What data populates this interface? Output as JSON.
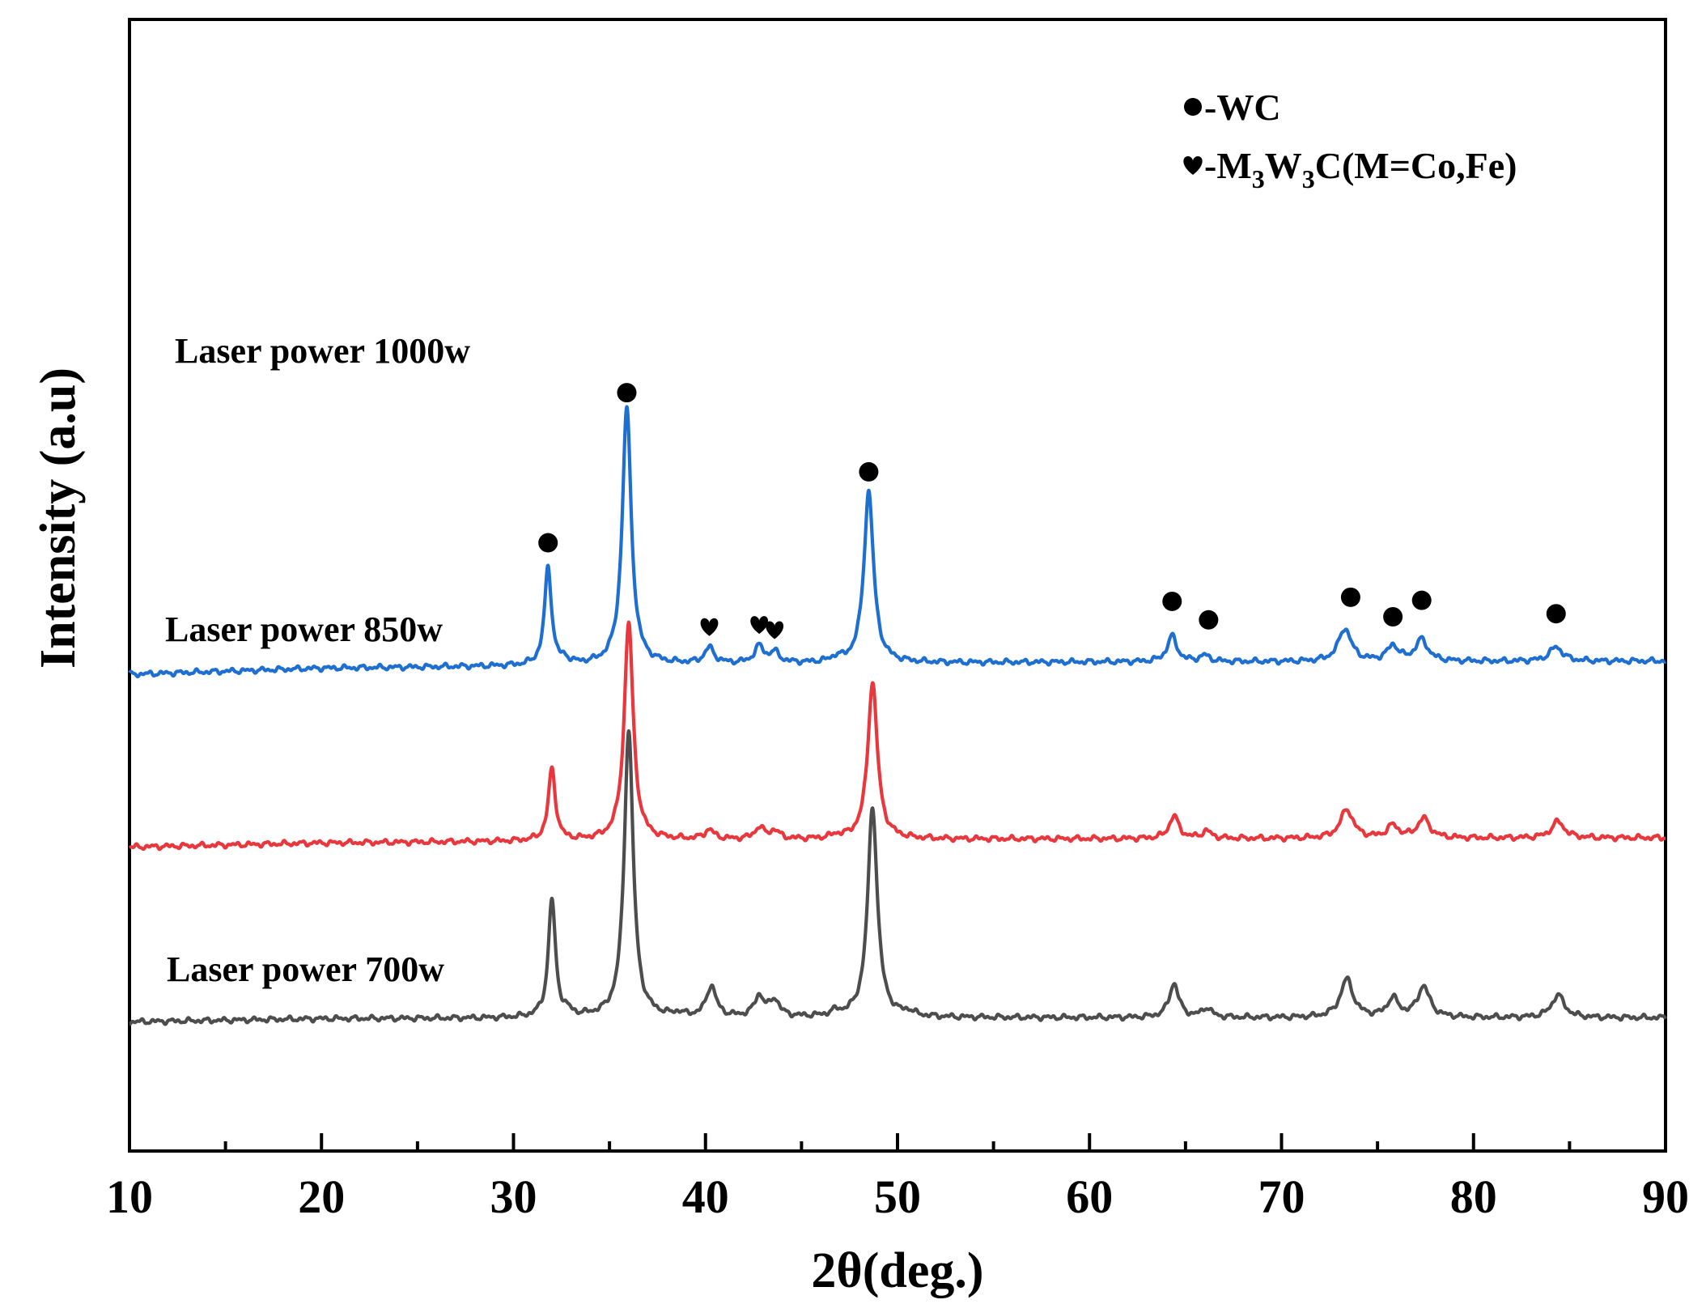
{
  "chart_data": {
    "type": "line",
    "title": "",
    "xlabel": "2θ(deg.)",
    "ylabel": "Intensity (a.u)",
    "xlim": [
      10,
      90
    ],
    "xticks": [
      "10",
      "20",
      "30",
      "40",
      "50",
      "60",
      "70",
      "80",
      "90"
    ],
    "yticks": [],
    "grid": false,
    "legend": {
      "position": "top-right",
      "entries": [
        {
          "symbol": "circle",
          "text": "-WC"
        },
        {
          "symbol": "heart",
          "text_pre": "-M",
          "sub1": "3",
          "text_mid": "W",
          "sub2": "3",
          "text_post": "C(M=Co,Fe)"
        }
      ]
    },
    "series": [
      {
        "name": "Laser power 700w",
        "label": "Laser power 700w",
        "color": "#4d4d4d",
        "baseline": [
          [
            10,
            6
          ],
          [
            20,
            9
          ],
          [
            40,
            10
          ],
          [
            60,
            10
          ],
          [
            90,
            10
          ]
        ],
        "peaks": [
          {
            "x": 32.0,
            "h": 115,
            "w": 0.22
          },
          {
            "x": 32.8,
            "h": 4,
            "w": 0.25
          },
          {
            "x": 36.0,
            "h": 280,
            "w": 0.28
          },
          {
            "x": 38.6,
            "h": 3,
            "w": 0.25
          },
          {
            "x": 40.3,
            "h": 30,
            "w": 0.3
          },
          {
            "x": 42.8,
            "h": 20,
            "w": 0.3
          },
          {
            "x": 43.6,
            "h": 16,
            "w": 0.3
          },
          {
            "x": 46.8,
            "h": 4,
            "w": 0.3
          },
          {
            "x": 48.7,
            "h": 205,
            "w": 0.3
          },
          {
            "x": 50.6,
            "h": 4,
            "w": 0.3
          },
          {
            "x": 64.4,
            "h": 33,
            "w": 0.3
          },
          {
            "x": 66.1,
            "h": 9,
            "w": 0.3
          },
          {
            "x": 73.4,
            "h": 37,
            "w": 0.4
          },
          {
            "x": 75.8,
            "h": 18,
            "w": 0.35
          },
          {
            "x": 77.4,
            "h": 30,
            "w": 0.38
          },
          {
            "x": 84.4,
            "h": 22,
            "w": 0.4
          }
        ]
      },
      {
        "name": "Laser power 850w",
        "label": "Laser power 850w",
        "color": "#e8383d",
        "baseline": [
          [
            10,
            176
          ],
          [
            20,
            180
          ],
          [
            40,
            183
          ],
          [
            60,
            184
          ],
          [
            90,
            185
          ]
        ],
        "peaks": [
          {
            "x": 32.0,
            "h": 70,
            "w": 0.22
          },
          {
            "x": 36.0,
            "h": 212,
            "w": 0.28
          },
          {
            "x": 40.2,
            "h": 9,
            "w": 0.3
          },
          {
            "x": 42.8,
            "h": 11,
            "w": 0.3
          },
          {
            "x": 43.6,
            "h": 8,
            "w": 0.3
          },
          {
            "x": 46.8,
            "h": 3,
            "w": 0.3
          },
          {
            "x": 48.7,
            "h": 153,
            "w": 0.3
          },
          {
            "x": 64.4,
            "h": 22,
            "w": 0.3
          },
          {
            "x": 66.1,
            "h": 7,
            "w": 0.3
          },
          {
            "x": 73.4,
            "h": 28,
            "w": 0.4
          },
          {
            "x": 75.8,
            "h": 12,
            "w": 0.35
          },
          {
            "x": 77.4,
            "h": 19,
            "w": 0.38
          },
          {
            "x": 84.4,
            "h": 16,
            "w": 0.4
          }
        ]
      },
      {
        "name": "Laser power 1000w",
        "label": "Laser power 1000w",
        "color": "#1f6fd1",
        "baseline": [
          [
            10,
            344
          ],
          [
            20,
            350
          ],
          [
            40,
            354
          ],
          [
            60,
            356
          ],
          [
            90,
            357
          ]
        ],
        "peaks": [
          {
            "x": 31.8,
            "h": 95,
            "w": 0.22
          },
          {
            "x": 32.7,
            "h": 4,
            "w": 0.25
          },
          {
            "x": 35.9,
            "h": 250,
            "w": 0.28
          },
          {
            "x": 40.2,
            "h": 15,
            "w": 0.3
          },
          {
            "x": 42.8,
            "h": 16,
            "w": 0.3
          },
          {
            "x": 43.6,
            "h": 10,
            "w": 0.3
          },
          {
            "x": 46.8,
            "h": 4,
            "w": 0.3
          },
          {
            "x": 48.5,
            "h": 167,
            "w": 0.3
          },
          {
            "x": 64.3,
            "h": 25,
            "w": 0.3
          },
          {
            "x": 66.0,
            "h": 6,
            "w": 0.3
          },
          {
            "x": 73.3,
            "h": 32,
            "w": 0.4
          },
          {
            "x": 75.8,
            "h": 15,
            "w": 0.35
          },
          {
            "x": 77.3,
            "h": 21,
            "w": 0.38
          },
          {
            "x": 84.3,
            "h": 14,
            "w": 0.4
          }
        ]
      }
    ],
    "annotations": [
      {
        "symbol": "circle",
        "x": 31.8,
        "y": 472
      },
      {
        "symbol": "circle",
        "x": 35.9,
        "y": 618
      },
      {
        "symbol": "circle",
        "x": 48.5,
        "y": 541
      },
      {
        "symbol": "circle",
        "x": 64.3,
        "y": 415
      },
      {
        "symbol": "circle",
        "x": 66.2,
        "y": 397
      },
      {
        "symbol": "circle",
        "x": 73.6,
        "y": 419
      },
      {
        "symbol": "circle",
        "x": 75.8,
        "y": 400
      },
      {
        "symbol": "circle",
        "x": 77.3,
        "y": 416
      },
      {
        "symbol": "circle",
        "x": 84.3,
        "y": 403
      },
      {
        "symbol": "heart",
        "x": 40.2,
        "y": 390
      },
      {
        "symbol": "heart",
        "x": 42.8,
        "y": 392
      },
      {
        "symbol": "heart",
        "x": 43.6,
        "y": 387
      }
    ]
  }
}
